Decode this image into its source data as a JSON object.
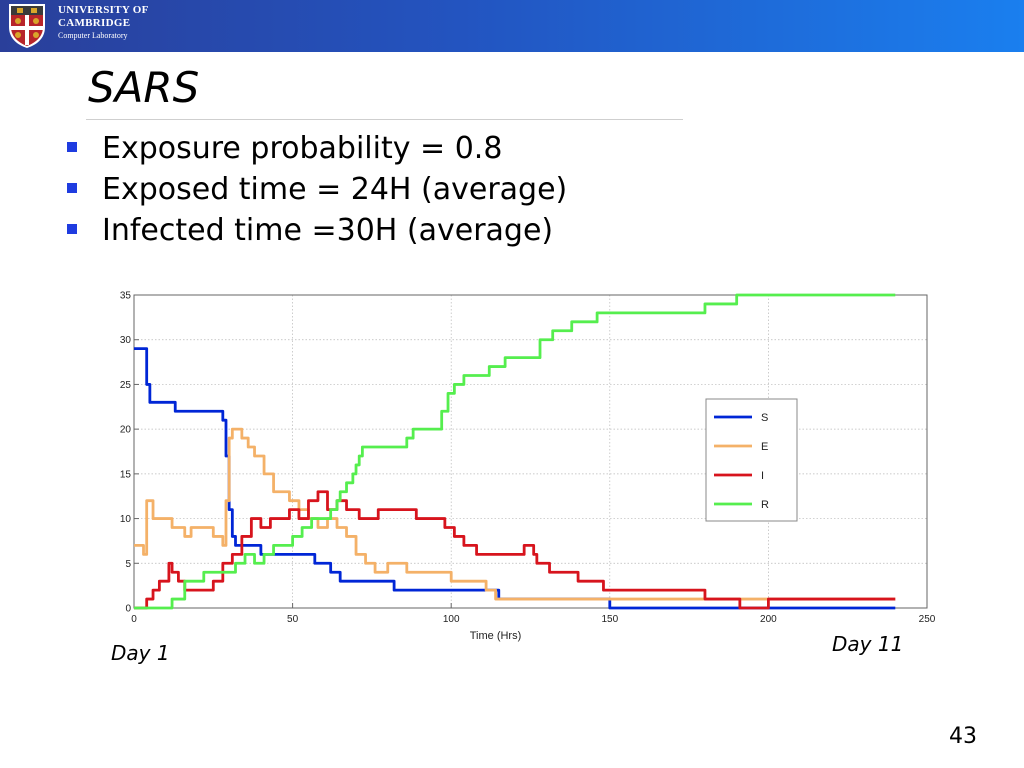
{
  "header": {
    "logo_lines": [
      "UNIVERSITY OF",
      "CAMBRIDGE",
      "Computer Laboratory"
    ],
    "crest_icon": "cambridge-crest-icon",
    "colors": {
      "gradient_start": "#2a3f9a",
      "gradient_end": "#1a7fef"
    }
  },
  "slide": {
    "title": "SARS",
    "bullets": [
      "Exposure probability = 0.8",
      "Exposed time = 24H (average)",
      "Infected time =30H (average)"
    ],
    "bullet_color": "#1f3ce0",
    "note_left": "Day 1",
    "note_right": "Day 11",
    "page_number": "43"
  },
  "chart_data": {
    "type": "line",
    "title": "",
    "xlabel": "Time (Hrs)",
    "ylabel": "",
    "xlim": [
      0,
      250
    ],
    "ylim": [
      0,
      35
    ],
    "xticks": [
      0,
      50,
      100,
      150,
      200,
      250
    ],
    "yticks": [
      0,
      5,
      10,
      15,
      20,
      25,
      30,
      35
    ],
    "grid": true,
    "legend_position": "right",
    "series": [
      {
        "name": "S",
        "color": "#0026d6",
        "x": [
          0,
          3,
          4,
          5,
          12,
          13,
          27,
          28,
          29,
          30,
          31,
          32,
          38,
          40,
          55,
          57,
          62,
          65,
          80,
          82,
          112,
          115,
          150,
          190,
          240
        ],
        "y": [
          29,
          29,
          25,
          23,
          23,
          22,
          22,
          21,
          17,
          11,
          8,
          7,
          7,
          6,
          6,
          5,
          4,
          3,
          3,
          2,
          2,
          1,
          0,
          0,
          0
        ]
      },
      {
        "name": "E",
        "color": "#f4b168",
        "x": [
          0,
          3,
          4,
          5,
          6,
          8,
          12,
          13,
          16,
          18,
          25,
          28,
          29,
          30,
          31,
          32,
          34,
          36,
          38,
          41,
          44,
          49,
          52,
          55,
          58,
          61,
          64,
          67,
          70,
          73,
          76,
          80,
          86,
          92,
          100,
          106,
          111,
          114,
          150,
          240
        ],
        "y": [
          7,
          6,
          12,
          12,
          10,
          10,
          9,
          9,
          8,
          9,
          8,
          7,
          12,
          19,
          20,
          20,
          19,
          18,
          17,
          15,
          13,
          12,
          11,
          10,
          9,
          10,
          9,
          8,
          6,
          5,
          4,
          5,
          4,
          4,
          3,
          3,
          2,
          1,
          1,
          1
        ]
      },
      {
        "name": "I",
        "color": "#d7141d",
        "x": [
          0,
          3,
          4,
          6,
          8,
          11,
          12,
          14,
          16,
          22,
          25,
          28,
          31,
          34,
          37,
          40,
          43,
          46,
          49,
          52,
          55,
          58,
          61,
          64,
          67,
          71,
          77,
          83,
          89,
          96,
          98,
          101,
          104,
          108,
          112,
          118,
          123,
          126,
          127,
          131,
          140,
          148,
          170,
          180,
          190,
          191,
          200,
          240
        ],
        "y": [
          0,
          0,
          1,
          2,
          3,
          5,
          4,
          3,
          2,
          2,
          3,
          5,
          6,
          8,
          10,
          9,
          10,
          10,
          11,
          10,
          12,
          13,
          11,
          12,
          11,
          10,
          11,
          11,
          10,
          10,
          9,
          8,
          7,
          6,
          6,
          6,
          7,
          6,
          5,
          4,
          3,
          2,
          2,
          1,
          1,
          0,
          1,
          1
        ]
      },
      {
        "name": "R",
        "color": "#55ee4e",
        "x": [
          0,
          10,
          12,
          16,
          22,
          28,
          32,
          35,
          38,
          41,
          44,
          48,
          50,
          53,
          56,
          59,
          62,
          64,
          65,
          67,
          69,
          70,
          71,
          72,
          83,
          86,
          88,
          95,
          97,
          99,
          101,
          104,
          110,
          112,
          117,
          122,
          125,
          128,
          132,
          135,
          138,
          140,
          146,
          150,
          165,
          180,
          190,
          191,
          240
        ],
        "y": [
          0,
          0,
          1,
          3,
          4,
          4,
          5,
          6,
          5,
          6,
          7,
          7,
          8,
          9,
          10,
          10,
          11,
          12,
          13,
          14,
          15,
          16,
          17,
          18,
          18,
          19,
          20,
          20,
          22,
          24,
          25,
          26,
          26,
          27,
          28,
          28,
          28,
          30,
          31,
          31,
          32,
          32,
          33,
          33,
          33,
          34,
          35,
          35,
          35
        ]
      }
    ]
  }
}
